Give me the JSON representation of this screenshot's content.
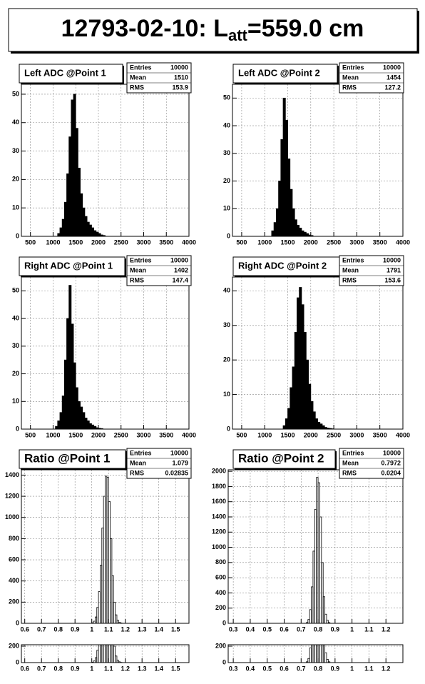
{
  "title": {
    "main": "12793-02-10: L",
    "sub": "att",
    "rest": "=559.0 cm"
  },
  "chart_data": [
    {
      "type": "histogram",
      "title": "Left ADC @Point 1",
      "color": "#000000",
      "filled": true,
      "grid": true,
      "stats_labels": [
        "Entries",
        "Mean",
        "RMS"
      ],
      "stats_values": [
        10000,
        1510,
        153.9
      ],
      "xlim": [
        300,
        4000
      ],
      "xticks": [
        500,
        1000,
        1500,
        2000,
        2500,
        3000,
        3500,
        4000
      ],
      "ylim": [
        0,
        53.5
      ],
      "yticks": [
        0,
        10,
        20,
        30,
        40,
        50
      ],
      "bins": [
        1100,
        1150,
        1200,
        1250,
        1300,
        1350,
        1400,
        1450,
        1500,
        1550,
        1600,
        1650,
        1700,
        1750,
        1800,
        1850,
        1900,
        1950,
        2000,
        2050,
        2100,
        2150
      ],
      "values": [
        1,
        3,
        6,
        12,
        22,
        35,
        48,
        50,
        38,
        24,
        15,
        10,
        7,
        5,
        4,
        3,
        2,
        1.5,
        1,
        0.5,
        0.3
      ]
    },
    {
      "type": "histogram",
      "title": "Left ADC @Point 2",
      "color": "#000000",
      "filled": true,
      "grid": true,
      "stats_labels": [
        "Entries",
        "Mean",
        "RMS"
      ],
      "stats_values": [
        10000,
        1454,
        127.2
      ],
      "xlim": [
        300,
        4000
      ],
      "xticks": [
        500,
        1000,
        1500,
        2000,
        2500,
        3000,
        3500,
        4000
      ],
      "ylim": [
        0,
        55
      ],
      "yticks": [
        0,
        10,
        20,
        30,
        40,
        50
      ],
      "bins": [
        1150,
        1200,
        1250,
        1300,
        1350,
        1400,
        1450,
        1500,
        1550,
        1600,
        1650,
        1700,
        1750,
        1800,
        1850,
        1900,
        1950,
        2000,
        2050
      ],
      "values": [
        2,
        5,
        10,
        20,
        35,
        50,
        42,
        28,
        17,
        10,
        6,
        4,
        3,
        2,
        1.5,
        1,
        0.5,
        0.3
      ]
    },
    {
      "type": "histogram",
      "title": "Right ADC @Point 1",
      "color": "#000000",
      "filled": true,
      "grid": true,
      "stats_labels": [
        "Entries",
        "Mean",
        "RMS"
      ],
      "stats_values": [
        10000,
        1402,
        147.4
      ],
      "xlim": [
        300,
        4000
      ],
      "xticks": [
        500,
        1000,
        1500,
        2000,
        2500,
        3000,
        3500,
        4000
      ],
      "ylim": [
        0,
        55
      ],
      "yticks": [
        0,
        10,
        20,
        30,
        40,
        50
      ],
      "bins": [
        1050,
        1100,
        1150,
        1200,
        1250,
        1300,
        1350,
        1400,
        1450,
        1500,
        1550,
        1600,
        1650,
        1700,
        1750,
        1800,
        1850,
        1900,
        1950,
        2000,
        2050,
        2100
      ],
      "values": [
        1,
        3,
        6,
        12,
        25,
        40,
        52,
        38,
        24,
        15,
        10,
        8,
        6,
        4,
        3,
        2,
        1.5,
        1,
        0.5,
        0.3,
        0.2
      ]
    },
    {
      "type": "histogram",
      "title": "Right ADC @Point 2",
      "color": "#000000",
      "filled": true,
      "grid": true,
      "stats_labels": [
        "Entries",
        "Mean",
        "RMS"
      ],
      "stats_values": [
        10000,
        1791,
        153.6
      ],
      "xlim": [
        300,
        4000
      ],
      "xticks": [
        500,
        1000,
        1500,
        2000,
        2500,
        3000,
        3500,
        4000
      ],
      "ylim": [
        0,
        44
      ],
      "yticks": [
        0,
        10,
        20,
        30,
        40
      ],
      "bins": [
        1400,
        1450,
        1500,
        1550,
        1600,
        1650,
        1700,
        1750,
        1800,
        1850,
        1900,
        1950,
        2000,
        2050,
        2100,
        2150,
        2200,
        2250,
        2300,
        2350,
        2400,
        2450,
        2500
      ],
      "values": [
        1,
        3,
        6,
        12,
        18,
        28,
        38,
        41,
        36,
        28,
        20,
        13,
        8,
        5,
        3,
        2,
        1.5,
        1,
        0.5,
        0.3,
        0.2,
        0.1
      ]
    },
    {
      "type": "histogram",
      "title": "Ratio @Point 1",
      "color": "#000000",
      "filled": false,
      "grid": true,
      "stats_labels": [
        "Entries",
        "Mean",
        "RMS"
      ],
      "stats_values": [
        10000,
        1.079,
        0.02835
      ],
      "xlim": [
        0.58,
        1.58
      ],
      "xticks": [
        0.6,
        0.7,
        0.8,
        0.9,
        1,
        1.1,
        1.2,
        1.3,
        1.4,
        1.5
      ],
      "ylim": [
        0,
        1450
      ],
      "yticks": [
        0,
        200,
        400,
        600,
        800,
        1000,
        1200,
        1400
      ],
      "bins": [
        1.0,
        1.01,
        1.02,
        1.03,
        1.04,
        1.05,
        1.06,
        1.07,
        1.08,
        1.09,
        1.1,
        1.11,
        1.12,
        1.13,
        1.14,
        1.15,
        1.16,
        1.17,
        1.18
      ],
      "values": [
        5,
        20,
        60,
        150,
        300,
        550,
        900,
        1200,
        1390,
        1380,
        1150,
        800,
        450,
        200,
        80,
        30,
        10,
        3
      ]
    },
    {
      "type": "histogram",
      "title": "Ratio @Point 2",
      "color": "#000000",
      "filled": false,
      "grid": true,
      "stats_labels": [
        "Entries",
        "Mean",
        "RMS"
      ],
      "stats_values": [
        10000,
        0.7972,
        0.0204
      ],
      "xlim": [
        0.27,
        1.3
      ],
      "xticks": [
        0.3,
        0.4,
        0.5,
        0.6,
        0.7,
        0.8,
        0.9,
        1,
        1.1,
        1.2
      ],
      "ylim": [
        0,
        2020
      ],
      "yticks": [
        0,
        200,
        400,
        600,
        800,
        1000,
        1200,
        1400,
        1600,
        1800,
        2000
      ],
      "bins": [
        0.73,
        0.74,
        0.75,
        0.76,
        0.77,
        0.78,
        0.79,
        0.8,
        0.81,
        0.82,
        0.83,
        0.84,
        0.85,
        0.86,
        0.87
      ],
      "values": [
        10,
        50,
        180,
        480,
        950,
        1500,
        1920,
        1850,
        1400,
        800,
        350,
        120,
        40,
        10
      ]
    }
  ]
}
